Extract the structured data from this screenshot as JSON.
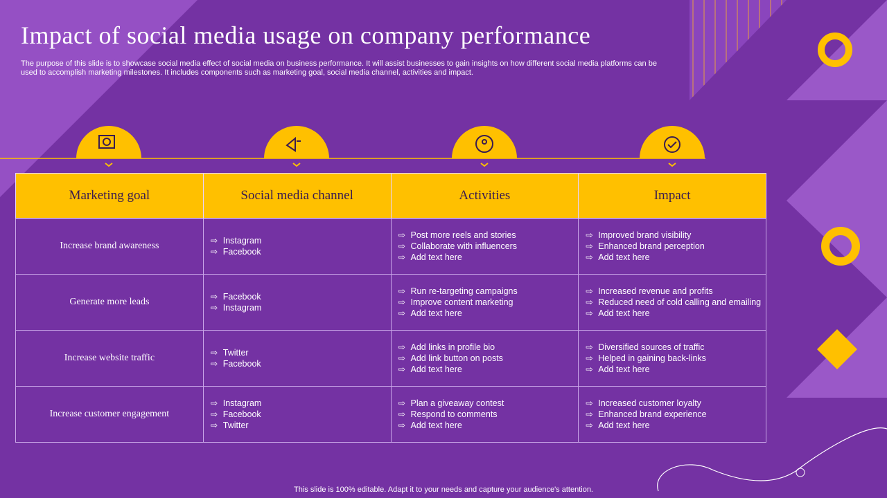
{
  "header": {
    "title": "Impact of social media usage on company performance",
    "description": "The purpose of this slide is to showcase social media effect of social media on business performance. It will assist businesses to gain insights on how different social media platforms can be used to accomplish marketing milestones. It includes components such as marketing goal, social media channel, activities and impact."
  },
  "table": {
    "columns": [
      "Marketing goal",
      "Social media channel",
      "Activities",
      "Impact"
    ],
    "rows": [
      [
        "Increase brand awareness",
        [
          "Instagram",
          "Facebook"
        ],
        [
          "Post more reels and stories",
          "Collaborate with influencers",
          "Add text here"
        ],
        [
          "Improved brand visibility",
          "Enhanced brand perception",
          "Add text here"
        ]
      ],
      [
        "Generate more leads",
        [
          "Facebook",
          "Instagram"
        ],
        [
          "Run re-targeting campaigns",
          "Improve content marketing",
          "Add text here"
        ],
        [
          "Increased revenue and profits",
          "Reduced need of cold calling and emailing",
          "Add text here"
        ]
      ],
      [
        "Increase website traffic",
        [
          "Twitter",
          "Facebook"
        ],
        [
          "Add links in profile bio",
          "Add link button on posts",
          "Add text here"
        ],
        [
          "Diversified sources of traffic",
          "Helped in gaining back-links",
          "Add text here"
        ]
      ],
      [
        "Increase customer engagement",
        [
          "Instagram",
          "Facebook",
          "Twitter"
        ],
        [
          "Plan a giveaway contest",
          "Respond to comments",
          "Add text here"
        ],
        [
          "Increased customer loyalty",
          "Enhanced brand experience",
          "Add text here"
        ]
      ]
    ]
  },
  "footer": "This slide is 100% editable. Adapt it to your needs and capture your audience's attention."
}
